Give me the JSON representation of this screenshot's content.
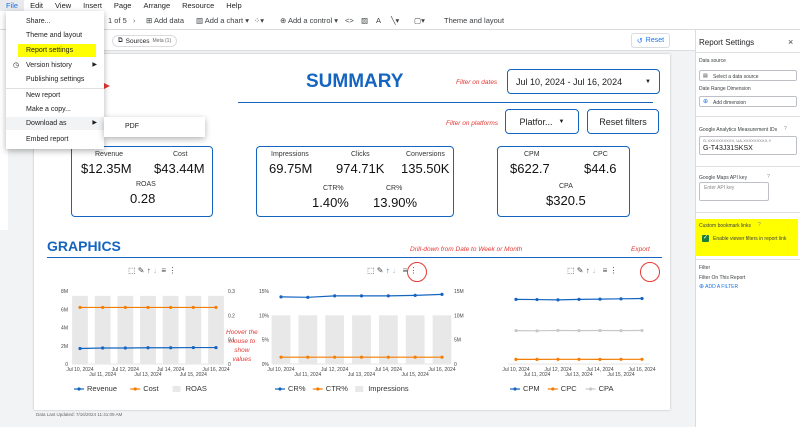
{
  "menubar": {
    "items": [
      "File",
      "Edit",
      "View",
      "Insert",
      "Page",
      "Arrange",
      "Resource",
      "Help"
    ]
  },
  "toolbar": {
    "page_indicator": "1 of 5",
    "add_data": "Add data",
    "add_chart": "Add a chart",
    "add_control": "Add a control",
    "theme_layout": "Theme and layout"
  },
  "filterbar": {
    "chip": "Sources",
    "chip_badge": "Meta (1)",
    "reset": "Reset"
  },
  "file_menu": {
    "items": [
      {
        "label": "Share..."
      },
      {
        "label": "Theme and layout"
      },
      {
        "label": "Report settings"
      },
      {
        "label": "Version history"
      },
      {
        "label": "Publishing settings"
      },
      {
        "label": "New report"
      },
      {
        "label": "Make a copy..."
      },
      {
        "label": "Download as"
      },
      {
        "label": "Embed report"
      }
    ],
    "submenu_item": "PDF"
  },
  "report": {
    "summary_title": "SUMMARY",
    "graphics_title": "GRAPHICS",
    "date_range": "Jul 10, 2024 - Jul 16, 2024",
    "platform_filter": "Platfor...",
    "reset_filters": "Reset filters",
    "last_updated": "Data Last Updated: 7/16/2024 11:41:09 AM",
    "annotations": {
      "filter_dates": "Filter on dates",
      "filter_platforms": "Filter on platforms",
      "drill_down": "Drill-down from Date to Week or Month",
      "export": "Export",
      "hover_line1": "Hoover the",
      "hover_line2": "mouse to",
      "hover_line3": "show",
      "hover_line4": "values"
    },
    "kpi_group1": [
      {
        "label": "Revenue",
        "value": "$12.35M"
      },
      {
        "label": "Cost",
        "value": "$43.44M"
      },
      {
        "label": "ROAS",
        "value": "0.28"
      }
    ],
    "kpi_group2": [
      {
        "label": "Impressions",
        "value": "69.75M"
      },
      {
        "label": "Clicks",
        "value": "974.71K"
      },
      {
        "label": "Conversions",
        "value": "135.50K"
      },
      {
        "label": "CTR%",
        "value": "1.40%"
      },
      {
        "label": "CR%",
        "value": "13.90%"
      }
    ],
    "kpi_group3": [
      {
        "label": "CPM",
        "value": "$622.7"
      },
      {
        "label": "CPC",
        "value": "$44.6"
      },
      {
        "label": "CPA",
        "value": "$320.5"
      }
    ]
  },
  "right_panel": {
    "title": "Report Settings",
    "data_source_label": "Data source",
    "data_source_placeholder": "Select a data source",
    "date_range_dimension": "Date Range Dimension",
    "add_dimension": "Add dimension",
    "ga_label": "Google Analytics Measurement IDs",
    "ga_hint": "G-XXXXXXXXXX, UA-XXXXXXXXX-Y",
    "ga_value": "G-T43J31SKSX",
    "maps_label": "Google Maps API key",
    "maps_placeholder": "Enter API key",
    "bookmark_label": "Custom bookmark links",
    "bookmark_checkbox": "Enable viewer filters in report link",
    "filter_label": "Filter",
    "filter_on_page": "Filter On This Report",
    "add_filter": "ADD A FILTER"
  },
  "colors": {
    "brand_blue": "#1565c0",
    "accent_orange": "#f57c00",
    "annotation_red": "#e53935",
    "highlight": "#ffff00"
  },
  "chart_data": [
    {
      "type": "bar+line",
      "x": [
        "Jul 10, 2024",
        "Jul 11, 2024",
        "Jul 12, 2024",
        "Jul 13, 2024",
        "Jul 14, 2024",
        "Jul 15, 2024",
        "Jul 16, 2024"
      ],
      "x_ticks_top": [
        "Jul 10, 2024",
        "Jul 12, 2024",
        "Jul 14, 2024",
        "Jul 16, 2024"
      ],
      "x_ticks_bottom": [
        "Jul 11, 2024",
        "Jul 13, 2024",
        "Jul 15, 2024"
      ],
      "y_left_ticks": [
        "8M",
        "6M",
        "4M",
        "2M",
        "0"
      ],
      "y_right_ticks": [
        "0.3",
        "0.2",
        "0.1",
        "0"
      ],
      "ylim_left": [
        0,
        8000000
      ],
      "ylim_right": [
        0,
        0.3
      ],
      "series": [
        {
          "name": "Revenue",
          "type": "line",
          "axis": "left",
          "values": [
            1.7,
            1.75,
            1.75,
            1.78,
            1.78,
            1.8,
            1.8
          ]
        },
        {
          "name": "Cost",
          "type": "line",
          "axis": "left",
          "values": [
            6.2,
            6.2,
            6.2,
            6.2,
            6.2,
            6.2,
            6.2
          ]
        },
        {
          "name": "ROAS",
          "type": "bar",
          "axis": "right",
          "values": [
            0.28,
            0.28,
            0.28,
            0.28,
            0.28,
            0.28,
            0.28
          ]
        }
      ]
    },
    {
      "type": "bar+line",
      "x": [
        "Jul 10, 2024",
        "Jul 11, 2024",
        "Jul 12, 2024",
        "Jul 13, 2024",
        "Jul 14, 2024",
        "Jul 15, 2024",
        "Jul 16, 2024"
      ],
      "x_ticks_top": [
        "Jul 10, 2024",
        "Jul 12, 2024",
        "Jul 14, 2024",
        "Jul 16, 2024"
      ],
      "x_ticks_bottom": [
        "Jul 11, 2024",
        "Jul 13, 2024",
        "Jul 15, 2024"
      ],
      "y_left_ticks": [
        "15%",
        "10%",
        "5%",
        "0%"
      ],
      "y_right_ticks": [
        "15M",
        "10M",
        "5M",
        "0"
      ],
      "ylim_left": [
        0,
        15
      ],
      "ylim_right": [
        0,
        15000000
      ],
      "series": [
        {
          "name": "CR%",
          "type": "line",
          "axis": "left",
          "values": [
            13.8,
            13.7,
            14.0,
            14.0,
            14.0,
            14.1,
            14.3
          ]
        },
        {
          "name": "CTR%",
          "type": "line",
          "axis": "left",
          "values": [
            1.4,
            1.4,
            1.4,
            1.4,
            1.4,
            1.4,
            1.4
          ]
        },
        {
          "name": "Impressions",
          "type": "bar",
          "axis": "right",
          "values": [
            10.0,
            10.0,
            10.0,
            10.0,
            10.0,
            10.0,
            10.0
          ]
        }
      ]
    },
    {
      "type": "line",
      "x": [
        "Jul 10, 2024",
        "Jul 11, 2024",
        "Jul 12, 2024",
        "Jul 13, 2024",
        "Jul 14, 2024",
        "Jul 15, 2024",
        "Jul 16, 2024"
      ],
      "x_ticks_top": [
        "Jul 10, 2024",
        "Jul 12, 2024",
        "Jul 14, 2024",
        "Jul 16, 2024"
      ],
      "x_ticks_bottom": [
        "Jul 11, 2024",
        "Jul 13, 2024",
        "Jul 15, 2024"
      ],
      "ylim": [
        0,
        700
      ],
      "series": [
        {
          "name": "CPM",
          "type": "line",
          "values": [
            620,
            618,
            615,
            620,
            622,
            625,
            628
          ]
        },
        {
          "name": "CPC",
          "type": "line",
          "values": [
            44,
            44,
            45,
            45,
            44,
            45,
            45
          ]
        },
        {
          "name": "CPA",
          "type": "line",
          "values": [
            320,
            318,
            322,
            320,
            321,
            320,
            322
          ]
        }
      ]
    }
  ]
}
